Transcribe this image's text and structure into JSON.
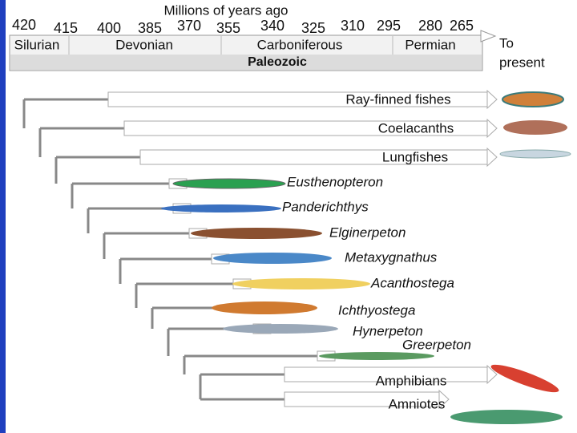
{
  "timeline": {
    "title": "Millions of years ago",
    "ticks": [
      "420",
      "415",
      "400",
      "385",
      "370",
      "355",
      "340",
      "325",
      "310",
      "295",
      "280",
      "265"
    ],
    "periods": [
      "Silurian",
      "Devonian",
      "Carboniferous",
      "Permian"
    ],
    "era": "Paleozoic",
    "present": [
      "To",
      "present"
    ]
  },
  "tree": {
    "taxa": [
      "Ray-finned fishes",
      "Coelacanths",
      "Lungfishes",
      "Eusthenopteron",
      "Panderichthys",
      "Elginerpeton",
      "Metaxygnathus",
      "Acanthostega",
      "Ichthyostega",
      "Hynerpeton",
      "Greerpeton",
      "Amphibians",
      "Amniotes"
    ]
  }
}
